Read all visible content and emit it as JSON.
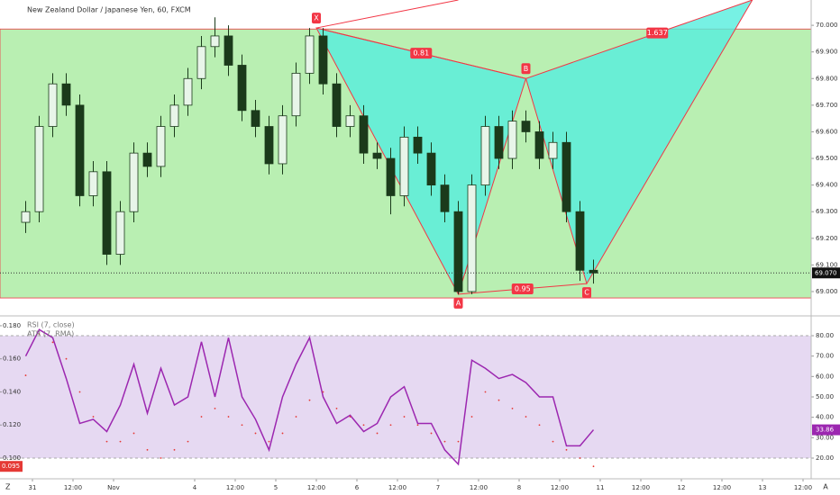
{
  "chart_data": [
    {
      "type": "candlestick",
      "title": "New Zealand Dollar / Japanese Yen, 60, FXCM",
      "x": [
        -2,
        2,
        6,
        10,
        14,
        18,
        22,
        26,
        30,
        34,
        38,
        42,
        46,
        50,
        54,
        58,
        62,
        66,
        70,
        74,
        78,
        82,
        86,
        90,
        94,
        98,
        102,
        106,
        110,
        114,
        118,
        122,
        126,
        130,
        134,
        138,
        142,
        146,
        150,
        154,
        158,
        162,
        166
      ],
      "open": [
        69.26,
        69.3,
        69.62,
        69.78,
        69.7,
        69.36,
        69.45,
        69.14,
        69.3,
        69.52,
        69.47,
        69.62,
        69.7,
        69.8,
        69.92,
        69.96,
        69.85,
        69.68,
        69.62,
        69.48,
        69.66,
        69.82,
        69.96,
        69.78,
        69.62,
        69.66,
        69.52,
        69.5,
        69.36,
        69.58,
        69.52,
        69.4,
        69.3,
        69.0,
        69.4,
        69.62,
        69.5,
        69.64,
        69.6,
        69.5,
        69.56,
        69.3,
        69.08
      ],
      "high": [
        69.34,
        69.66,
        69.82,
        69.82,
        69.74,
        69.49,
        69.49,
        69.34,
        69.56,
        69.56,
        69.66,
        69.74,
        69.84,
        69.96,
        70.03,
        70.0,
        69.89,
        69.72,
        69.66,
        69.7,
        69.86,
        69.99,
        69.99,
        69.82,
        69.7,
        69.7,
        69.56,
        69.54,
        69.62,
        69.62,
        69.56,
        69.44,
        69.34,
        69.44,
        69.66,
        69.66,
        69.68,
        69.68,
        69.64,
        69.6,
        69.6,
        69.34,
        69.12
      ],
      "low": [
        69.22,
        69.26,
        69.58,
        69.66,
        69.32,
        69.32,
        69.1,
        69.1,
        69.26,
        69.43,
        69.43,
        69.58,
        69.66,
        69.76,
        69.88,
        69.81,
        69.64,
        69.58,
        69.44,
        69.44,
        69.62,
        69.78,
        69.74,
        69.58,
        69.58,
        69.48,
        69.46,
        69.29,
        69.32,
        69.48,
        69.36,
        69.26,
        68.99,
        68.99,
        69.36,
        69.46,
        69.46,
        69.56,
        69.46,
        69.46,
        69.26,
        69.04,
        69.03
      ],
      "close": [
        69.3,
        69.62,
        69.78,
        69.7,
        69.36,
        69.45,
        69.14,
        69.3,
        69.52,
        69.47,
        69.62,
        69.7,
        69.8,
        69.92,
        69.96,
        69.85,
        69.68,
        69.62,
        69.48,
        69.66,
        69.82,
        69.96,
        69.78,
        69.62,
        69.66,
        69.52,
        69.5,
        69.36,
        69.58,
        69.52,
        69.4,
        69.3,
        69.0,
        69.4,
        69.62,
        69.5,
        69.64,
        69.6,
        69.5,
        69.56,
        69.3,
        69.08,
        69.07
      ],
      "up_color": "#e8f5e9",
      "down_color": "#1b3a1b",
      "wick_color": "#1b3a1b",
      "xlim": [
        -9.6,
        230.4
      ],
      "ylim": [
        68.912,
        70.095
      ],
      "yticks": [
        {
          "value": 69.0,
          "label": "69.000"
        },
        {
          "value": 69.1,
          "label": "69.100"
        },
        {
          "value": 69.2,
          "label": "69.200"
        },
        {
          "value": 69.3,
          "label": "69.300"
        },
        {
          "value": 69.4,
          "label": "69.400"
        },
        {
          "value": 69.5,
          "label": "69.500"
        },
        {
          "value": 69.6,
          "label": "69.600"
        },
        {
          "value": 69.7,
          "label": "69.700"
        },
        {
          "value": 69.8,
          "label": "69.800"
        },
        {
          "value": 69.9,
          "label": "69.900"
        },
        {
          "value": 70.0,
          "label": "70.000"
        }
      ],
      "zone": [
        68.976,
        69.986
      ],
      "zone_color": "#b9efb2",
      "pattern": {
        "labels": [
          "X",
          "A",
          "B",
          "C"
        ],
        "x": [
          84,
          126,
          146,
          164
        ],
        "price": [
          69.99,
          68.99,
          69.8,
          69.03
        ],
        "apex": [
          213,
          70.095
        ],
        "projection_end": [
          126,
          70.095
        ],
        "ratios": [
          "0.81",
          "0.95",
          "1.637"
        ],
        "color": "#f23645",
        "fill": "#55eedd"
      },
      "price_label": {
        "value": 69.07,
        "label": "69.070"
      }
    },
    {
      "type": "line",
      "series": [
        {
          "name": "RSI (7, close)",
          "color": "#9c27b0",
          "axis": "y2",
          "values": [
            70,
            83,
            79,
            59,
            37,
            39,
            33,
            46,
            66,
            42,
            64,
            46,
            50,
            77,
            50,
            79,
            50,
            39,
            24,
            50,
            66,
            79,
            50,
            37,
            41,
            33,
            37,
            50,
            55,
            37,
            37,
            24,
            17,
            68,
            64,
            59,
            61,
            57,
            50,
            50,
            26,
            26,
            33.86
          ]
        },
        {
          "name": "ATR (7, RMA)",
          "color": "#e53935",
          "values": [
            0.15,
            0.175,
            0.17,
            0.16,
            0.14,
            0.125,
            0.11,
            0.11,
            0.115,
            0.105,
            0.1,
            0.105,
            0.11,
            0.125,
            0.13,
            0.125,
            0.12,
            0.115,
            0.11,
            0.115,
            0.125,
            0.135,
            0.14,
            0.13,
            0.125,
            0.12,
            0.115,
            0.12,
            0.125,
            0.12,
            0.115,
            0.11,
            0.11,
            0.125,
            0.14,
            0.135,
            0.13,
            0.125,
            0.12,
            0.11,
            0.105,
            0.1,
            0.095
          ]
        }
      ],
      "xlim": [
        -9.6,
        230.4
      ],
      "xticks": [
        {
          "value": 0,
          "label": "31"
        },
        {
          "value": 12,
          "label": "12:00"
        },
        {
          "value": 24,
          "label": "Nov"
        },
        {
          "value": 48,
          "label": "4"
        },
        {
          "value": 60,
          "label": "12:00"
        },
        {
          "value": 72,
          "label": "5"
        },
        {
          "value": 84,
          "label": "12:00"
        },
        {
          "value": 96,
          "label": "6"
        },
        {
          "value": 108,
          "label": "12:00"
        },
        {
          "value": 120,
          "label": "7"
        },
        {
          "value": 132,
          "label": "12:00"
        },
        {
          "value": 144,
          "label": "8"
        },
        {
          "value": 156,
          "label": "12:00"
        },
        {
          "value": 168,
          "label": "11"
        },
        {
          "value": 180,
          "label": "12:00"
        },
        {
          "value": 192,
          "label": "12"
        },
        {
          "value": 204,
          "label": "12:00"
        },
        {
          "value": 216,
          "label": "13"
        },
        {
          "value": 228,
          "label": "12:00"
        }
      ],
      "ylim": [
        0.0875,
        0.1854
      ],
      "yticks": [
        {
          "value": 0.1,
          "label": "0.100"
        },
        {
          "value": 0.12,
          "label": "0.120"
        },
        {
          "value": 0.14,
          "label": "0.140"
        },
        {
          "value": 0.16,
          "label": "0.160"
        },
        {
          "value": 0.18,
          "label": "0.180"
        }
      ],
      "y2lim": [
        9.85,
        89.26
      ],
      "y2ticks": [
        {
          "value": 20,
          "label": "20.00"
        },
        {
          "value": 30,
          "label": "30.00"
        },
        {
          "value": 40,
          "label": "40.00"
        },
        {
          "value": 50,
          "label": "50.00"
        },
        {
          "value": 60,
          "label": "60.00"
        },
        {
          "value": 70,
          "label": "70.00"
        },
        {
          "value": 80,
          "label": "80.00"
        }
      ],
      "band": [
        20,
        80
      ],
      "band_color": "#e6d9f2"
    }
  ],
  "toolbar": {
    "left": "Z",
    "right": "A"
  }
}
